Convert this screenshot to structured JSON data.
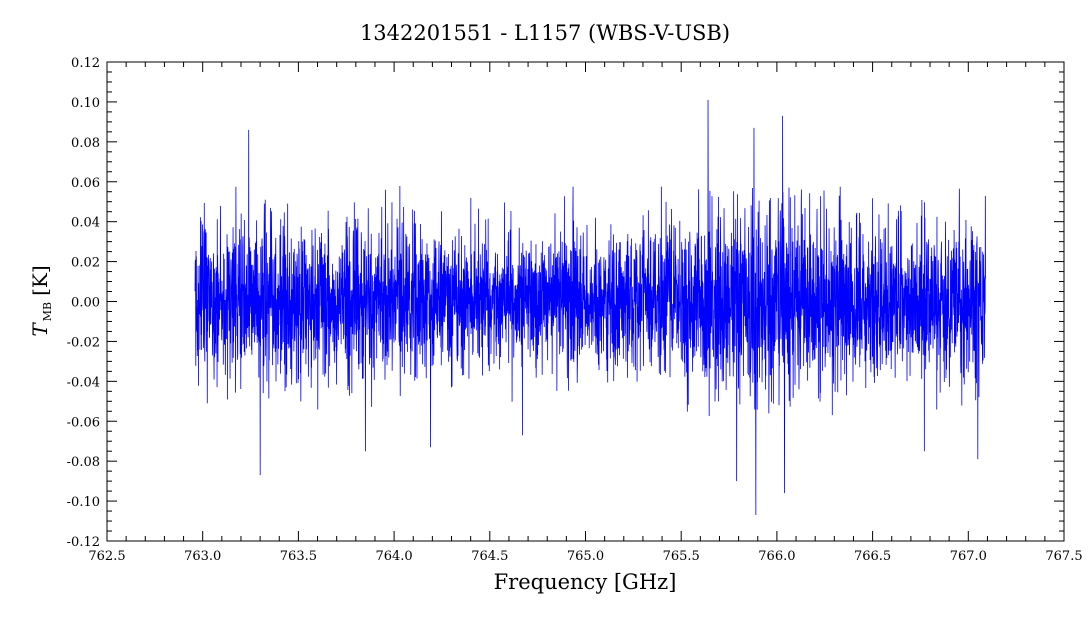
{
  "chart_data": {
    "type": "line",
    "title": "1342201551 - L1157 (WBS-V-USB)",
    "xlabel": "Frequency [GHz]",
    "ylabel": {
      "main": "T",
      "sub": "MB",
      "unit": "[K]"
    },
    "xlim": [
      762.5,
      767.5
    ],
    "ylim": [
      -0.12,
      0.12
    ],
    "x_ticks": [
      "762.5",
      "763.0",
      "763.5",
      "764.0",
      "764.5",
      "765.0",
      "765.5",
      "766.0",
      "766.5",
      "767.0",
      "767.5"
    ],
    "y_ticks": [
      "-0.12",
      "-0.10",
      "-0.08",
      "-0.06",
      "-0.04",
      "-0.02",
      "0.00",
      "0.02",
      "0.04",
      "0.06",
      "0.08",
      "0.10",
      "0.12"
    ],
    "grid": false,
    "series": [
      {
        "color": "#0000ff",
        "noise_envelope": {
          "x": [
            762.96,
            763.0,
            763.25,
            763.5,
            763.75,
            764.0,
            764.25,
            764.5,
            764.75,
            765.0,
            765.25,
            765.5,
            765.75,
            766.0,
            766.25,
            766.5,
            766.75,
            767.09
          ],
          "rms": [
            0.018,
            0.02,
            0.019,
            0.019,
            0.019,
            0.018,
            0.017,
            0.016,
            0.015,
            0.016,
            0.018,
            0.021,
            0.025,
            0.026,
            0.023,
            0.02,
            0.019,
            0.02
          ]
        },
        "spikes": [
          {
            "x": 763.24,
            "y": 0.086
          },
          {
            "x": 763.3,
            "y": -0.087
          },
          {
            "x": 763.85,
            "y": -0.075
          },
          {
            "x": 764.19,
            "y": -0.073
          },
          {
            "x": 764.67,
            "y": -0.067
          },
          {
            "x": 765.64,
            "y": 0.101
          },
          {
            "x": 765.79,
            "y": -0.09
          },
          {
            "x": 765.88,
            "y": 0.087
          },
          {
            "x": 765.89,
            "y": -0.107
          },
          {
            "x": 766.03,
            "y": 0.093
          },
          {
            "x": 766.04,
            "y": -0.096
          },
          {
            "x": 766.77,
            "y": -0.075
          },
          {
            "x": 767.05,
            "y": -0.079
          }
        ]
      }
    ]
  }
}
